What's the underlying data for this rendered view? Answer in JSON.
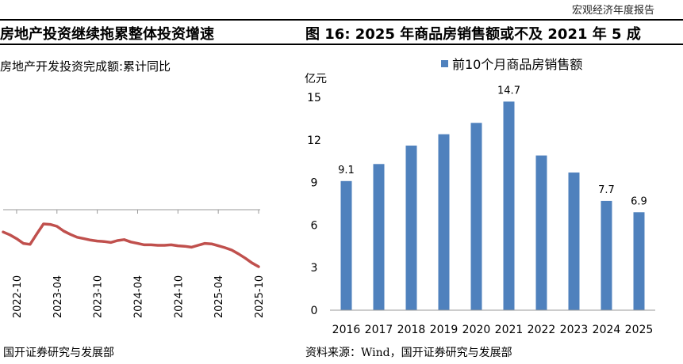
{
  "header": {
    "report_type": "宏观经济年度报告"
  },
  "left_panel": {
    "title": "房地产投资继续拖累整体投资增速",
    "subtitle": "房地产开发投资完成额:累计同比",
    "source": "国开证券研究与发展部",
    "line_color": "#C0504D",
    "x_ticks": [
      "2022-10",
      "2023-04",
      "2023-10",
      "2024-04",
      "2024-10",
      "2025-04",
      "2025-10"
    ]
  },
  "right_panel": {
    "figure_title": "图 16:  2025 年商品房销售额或不及 2021 年 5 成",
    "source": "资料来源：Wind，国开证券研究与发展部"
  },
  "chart_data": [
    {
      "type": "line",
      "title": "房地产开发投资完成额:累计同比",
      "x": [
        "2022-08",
        "2022-09",
        "2022-10",
        "2022-11",
        "2022-12",
        "2023-01",
        "2023-02",
        "2023-03",
        "2023-04",
        "2023-05",
        "2023-06",
        "2023-07",
        "2023-08",
        "2023-09",
        "2023-10",
        "2023-11",
        "2023-12",
        "2024-01",
        "2024-02",
        "2024-03",
        "2024-04",
        "2024-05",
        "2024-06",
        "2024-07",
        "2024-08",
        "2024-09",
        "2024-10",
        "2024-11",
        "2024-12",
        "2025-01",
        "2025-02",
        "2025-03",
        "2025-04",
        "2025-05",
        "2025-06",
        "2025-07",
        "2025-08",
        "2025-09",
        "2025-10"
      ],
      "series": [
        {
          "values": [
            -7.4,
            -8.0,
            -8.8,
            -9.8,
            -10.0,
            -7.8,
            -5.7,
            -5.8,
            -6.2,
            -7.2,
            -7.9,
            -8.5,
            -8.8,
            -9.1,
            -9.3,
            -9.4,
            -9.6,
            -9.2,
            -9.0,
            -9.5,
            -9.8,
            -10.1,
            -10.1,
            -10.2,
            -10.2,
            -10.1,
            -10.3,
            -10.4,
            -10.6,
            -10.2,
            -9.8,
            -9.9,
            -10.3,
            -10.7,
            -11.2,
            -12.0,
            -12.9,
            -13.9,
            -14.7
          ]
        }
      ],
      "xticks": [
        "2022-10",
        "2023-04",
        "2023-10",
        "2024-04",
        "2024-10",
        "2025-04",
        "2025-10"
      ]
    },
    {
      "type": "bar",
      "categories": [
        "2016",
        "2017",
        "2018",
        "2019",
        "2020",
        "2021",
        "2022",
        "2023",
        "2024",
        "2025"
      ],
      "series": [
        {
          "name": "前10个月商品房销售额",
          "values": [
            9.1,
            10.3,
            11.6,
            12.4,
            13.2,
            14.7,
            10.9,
            9.7,
            7.7,
            6.9
          ]
        }
      ],
      "data_labels": {
        "2016": "9.1",
        "2021": "14.7",
        "2024": "7.7",
        "2025": "6.9"
      },
      "ylabel": "亿元",
      "ylim": [
        0,
        15
      ],
      "yticks": [
        0,
        3,
        6,
        9,
        12,
        15
      ],
      "bar_color": "#4F81BD",
      "grid": false,
      "legend": "top"
    }
  ]
}
